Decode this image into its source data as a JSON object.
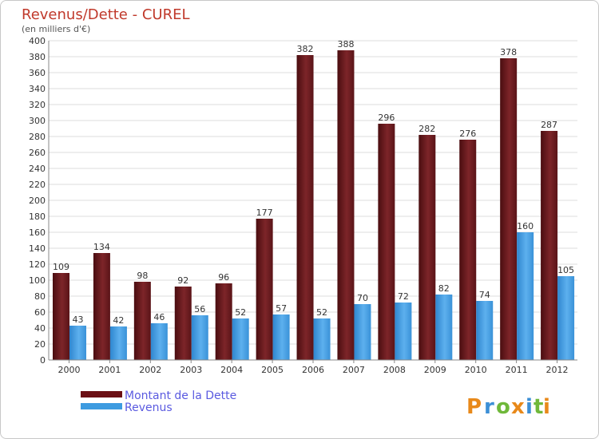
{
  "chart_data": {
    "type": "bar",
    "title": "Revenus/Dette - CUREL",
    "subtitle": "(en milliers d'€)",
    "categories": [
      "2000",
      "2001",
      "2002",
      "2003",
      "2004",
      "2005",
      "2006",
      "2007",
      "2008",
      "2009",
      "2010",
      "2011",
      "2012"
    ],
    "series": [
      {
        "name": "Montant de la Dette",
        "values": [
          109,
          134,
          98,
          92,
          96,
          177,
          382,
          388,
          296,
          282,
          276,
          378,
          287
        ],
        "color": "#7a1f24"
      },
      {
        "name": "Revenus",
        "values": [
          43,
          42,
          46,
          56,
          52,
          57,
          52,
          70,
          72,
          82,
          74,
          160,
          105
        ],
        "color": "#3d9be0"
      }
    ],
    "ylim": [
      0,
      400
    ],
    "ytick_step": 20,
    "grid": true,
    "legend_position": "bottom-left",
    "show_data_labels": true
  },
  "branding": {
    "logo_letters": [
      "P",
      "r",
      "o",
      "x",
      "i",
      "t",
      "i"
    ],
    "logo_colors": [
      "#e8891a",
      "#3c8fd6",
      "#6fb83a",
      "#e8891a",
      "#3c8fd6",
      "#6fb83a",
      "#e8891a"
    ]
  }
}
